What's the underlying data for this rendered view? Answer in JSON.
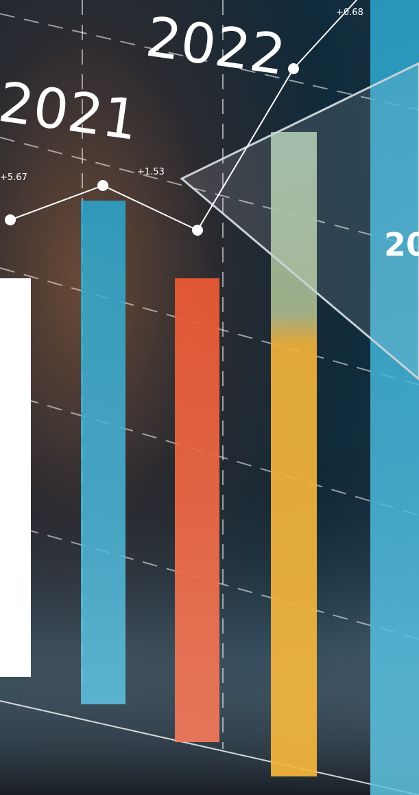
{
  "labels": {
    "year_right": "2022",
    "year_left": "2021",
    "delta_top": "+0.68",
    "delta_left": "+5.67",
    "delta_mid": "+1.53",
    "panel_text": "20"
  }
}
